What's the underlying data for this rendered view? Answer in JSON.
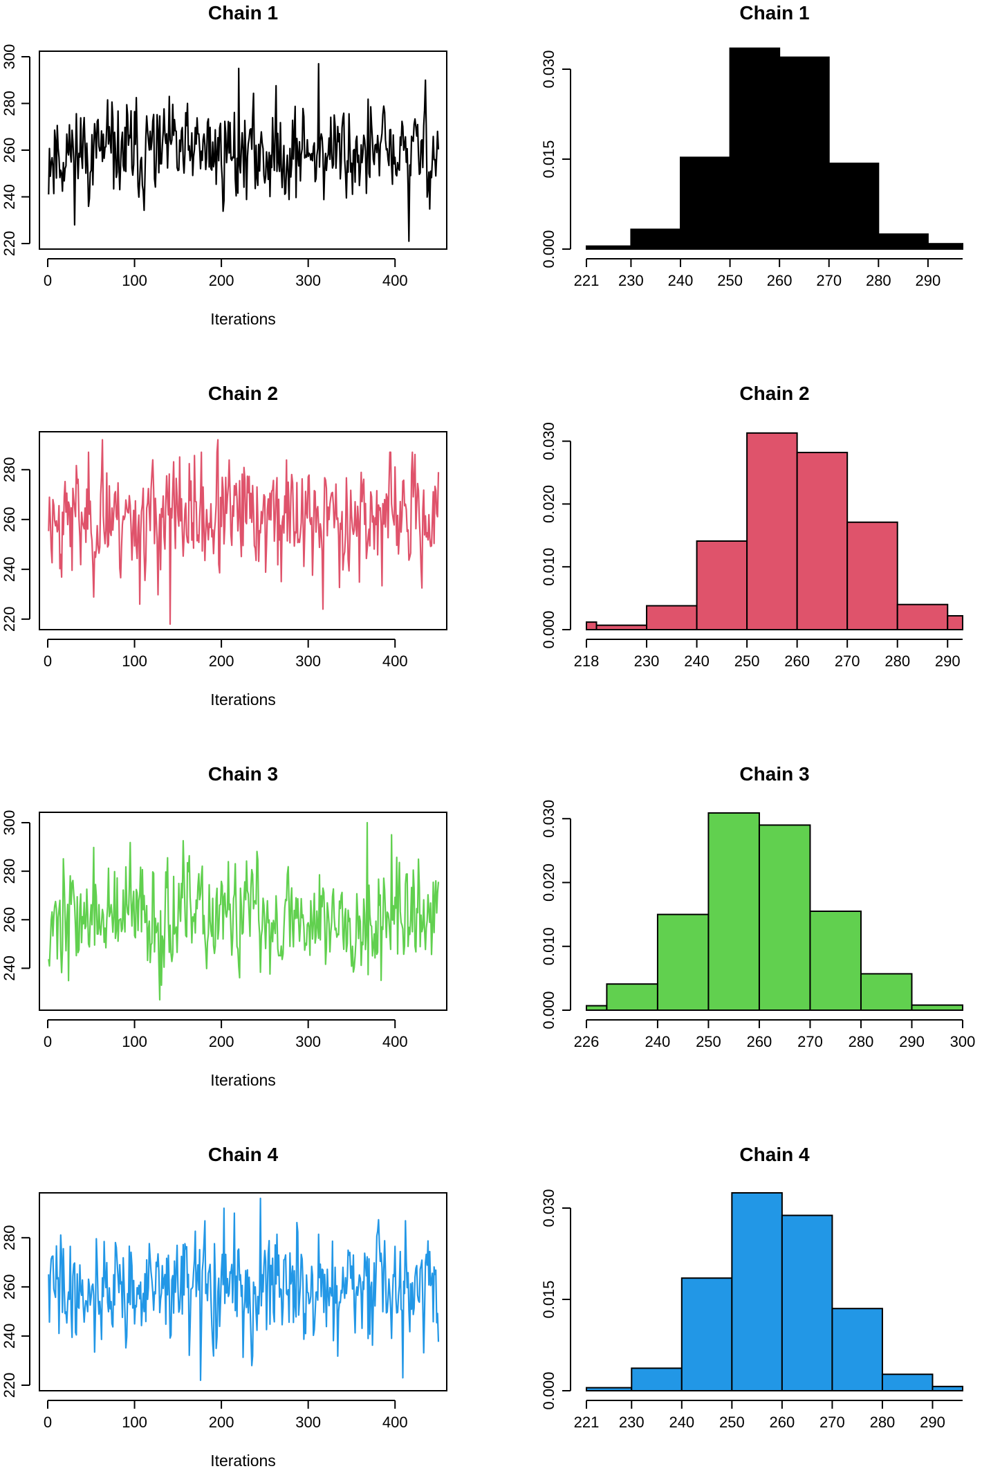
{
  "chart_data": [
    {
      "type": "line",
      "title": "Chain 1",
      "xlabel": "Iterations",
      "ylabel": "",
      "color": "#000000",
      "xlim": [
        0,
        450
      ],
      "ylim": [
        220,
        300
      ],
      "xticks": [
        0,
        100,
        200,
        300,
        400
      ],
      "yticks": [
        220,
        240,
        260,
        280,
        300
      ],
      "spikes": [
        [
          219,
          295
        ],
        [
          311,
          297
        ],
        [
          415,
          221
        ],
        [
          434,
          290
        ]
      ],
      "seed": 11,
      "mean": 259,
      "sd": 10,
      "n": 450
    },
    {
      "type": "bar",
      "title": "Chain 1",
      "color": "#000000",
      "breaks": [
        221,
        230,
        240,
        250,
        260,
        270,
        280,
        290,
        297
      ],
      "xtick_labels": [
        "221",
        "230",
        "240",
        "250",
        "260",
        "270",
        "280",
        "290"
      ],
      "values": [
        0.0005,
        0.0033,
        0.0153,
        0.0335,
        0.032,
        0.0143,
        0.0025,
        0.0009
      ],
      "yticks": [
        0.0,
        0.015,
        0.03
      ],
      "ytick_labels": [
        "0.000",
        "0.015",
        "0.030"
      ],
      "ylim": [
        0,
        0.033
      ]
    },
    {
      "type": "line",
      "title": "Chain 2",
      "xlabel": "Iterations",
      "ylabel": "",
      "color": "#DF536B",
      "xlim": [
        0,
        450
      ],
      "ylim": [
        218,
        293
      ],
      "xticks": [
        0,
        100,
        200,
        300,
        400
      ],
      "yticks": [
        220,
        240,
        260,
        280
      ],
      "spikes": [
        [
          140,
          218
        ],
        [
          105,
          226
        ],
        [
          316,
          224
        ],
        [
          62,
          292
        ],
        [
          195,
          292
        ]
      ],
      "seed": 23,
      "mean": 261,
      "sd": 11,
      "n": 450
    },
    {
      "type": "bar",
      "title": "Chain 2",
      "color": "#DF536B",
      "breaks": [
        218,
        220,
        230,
        240,
        250,
        260,
        270,
        280,
        290,
        293
      ],
      "xtick_labels": [
        "218",
        "230",
        "240",
        "250",
        "260",
        "270",
        "280",
        "290"
      ],
      "tick_positions": [
        218,
        230,
        240,
        250,
        260,
        270,
        280,
        290
      ],
      "values": [
        0.0012,
        0.0007,
        0.0038,
        0.0141,
        0.0313,
        0.0282,
        0.0171,
        0.004,
        0.0022
      ],
      "yticks": [
        0.0,
        0.01,
        0.02,
        0.03
      ],
      "ytick_labels": [
        "0.000",
        "0.010",
        "0.020",
        "0.030"
      ],
      "ylim": [
        0,
        0.0315
      ]
    },
    {
      "type": "line",
      "title": "Chain 3",
      "xlabel": "Iterations",
      "ylabel": "",
      "color": "#61D04F",
      "xlim": [
        0,
        450
      ],
      "ylim": [
        225,
        302
      ],
      "xticks": [
        0,
        100,
        200,
        300,
        400
      ],
      "yticks": [
        240,
        260,
        280,
        300
      ],
      "spikes": [
        [
          128,
          227
        ],
        [
          367,
          300
        ],
        [
          383,
          235
        ],
        [
          395,
          295
        ]
      ],
      "seed": 37,
      "mean": 261,
      "sd": 11,
      "n": 450
    },
    {
      "type": "bar",
      "title": "Chain 3",
      "color": "#61D04F",
      "breaks": [
        226,
        230,
        240,
        250,
        260,
        270,
        280,
        290,
        300
      ],
      "xtick_labels": [
        "226",
        "240",
        "250",
        "260",
        "270",
        "280",
        "290",
        "300"
      ],
      "tick_positions": [
        226,
        240,
        250,
        260,
        270,
        280,
        290,
        300
      ],
      "values": [
        0.0007,
        0.0041,
        0.015,
        0.0309,
        0.029,
        0.0155,
        0.0057,
        0.0008
      ],
      "yticks": [
        0.0,
        0.01,
        0.02,
        0.03
      ],
      "ytick_labels": [
        "0.000",
        "0.010",
        "0.020",
        "0.030"
      ],
      "ylim": [
        0,
        0.031
      ]
    },
    {
      "type": "line",
      "title": "Chain 4",
      "xlabel": "Iterations",
      "ylabel": "",
      "color": "#2297E6",
      "xlim": [
        0,
        450
      ],
      "ylim": [
        220,
        296
      ],
      "xticks": [
        0,
        100,
        200,
        300,
        400
      ],
      "yticks": [
        220,
        240,
        260,
        280
      ],
      "spikes": [
        [
          175,
          222
        ],
        [
          244,
          296
        ],
        [
          408,
          223
        ],
        [
          202,
          292
        ]
      ],
      "seed": 41,
      "mean": 259,
      "sd": 11,
      "n": 450
    },
    {
      "type": "bar",
      "title": "Chain 4",
      "color": "#2297E6",
      "breaks": [
        221,
        230,
        240,
        250,
        260,
        270,
        280,
        290,
        296
      ],
      "xtick_labels": [
        "221",
        "230",
        "240",
        "250",
        "260",
        "270",
        "280",
        "290"
      ],
      "values": [
        0.0005,
        0.0037,
        0.0185,
        0.0325,
        0.0288,
        0.0135,
        0.0027,
        0.0007
      ],
      "yticks": [
        0.0,
        0.015,
        0.03
      ],
      "ytick_labels": [
        "0.000",
        "0.015",
        "0.030"
      ],
      "ylim": [
        0,
        0.0325
      ]
    }
  ]
}
